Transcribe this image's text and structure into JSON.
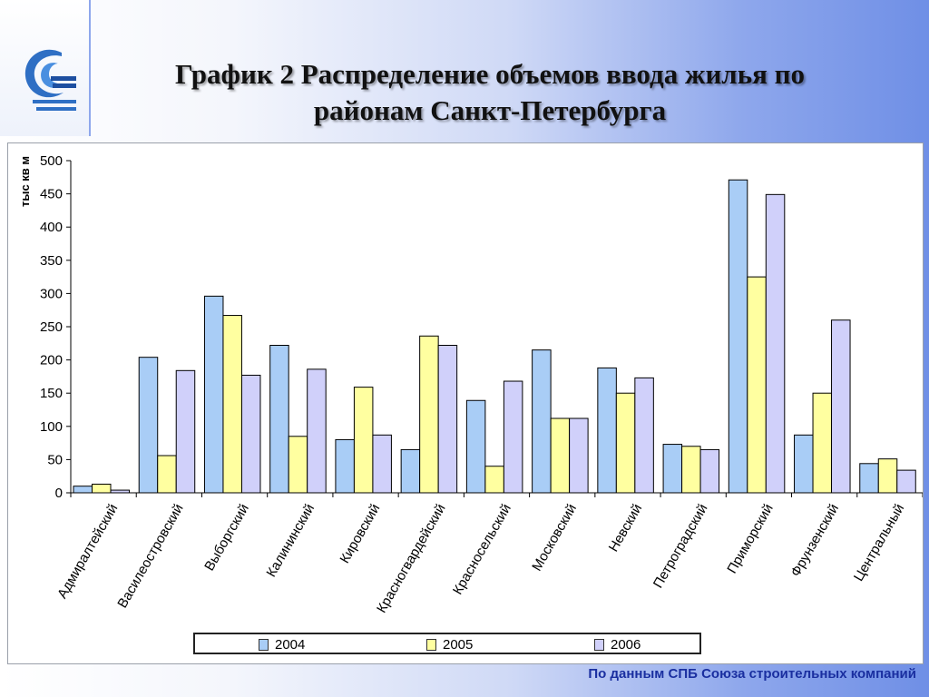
{
  "title": "График 2 Распределение объемов ввода жилья по районам Санкт-Петербурга",
  "source_note": "По данным СПБ Союза строительных компаний",
  "colors": {
    "s2004": "#a9cdf6",
    "s2005": "#ffffa0",
    "s2006": "#d0d0fa"
  },
  "chart_data": {
    "type": "bar",
    "title": "",
    "xlabel": "",
    "ylabel": "тыс кв м",
    "ylim": [
      0,
      500
    ],
    "yticks": [
      0,
      50,
      100,
      150,
      200,
      250,
      300,
      350,
      400,
      450,
      500
    ],
    "grid": false,
    "legend_position": "bottom",
    "categories": [
      "Адмиралтейский",
      "Василеостровский",
      "Выборгский",
      "Калининский",
      "Кировский",
      "Красногвардейский",
      "Красносельский",
      "Московский",
      "Невский",
      "Петроградский",
      "Приморский",
      "Фрунзенский",
      "Центральный"
    ],
    "series": [
      {
        "name": "2004",
        "color": "#a9cdf6",
        "values": [
          10,
          204,
          296,
          222,
          80,
          65,
          139,
          215,
          188,
          73,
          471,
          87,
          44
        ]
      },
      {
        "name": "2005",
        "color": "#ffffa0",
        "values": [
          13,
          56,
          267,
          85,
          159,
          236,
          40,
          112,
          150,
          70,
          325,
          150,
          51
        ]
      },
      {
        "name": "2006",
        "color": "#d0d0fa",
        "values": [
          4,
          184,
          177,
          186,
          87,
          222,
          168,
          112,
          173,
          65,
          449,
          260,
          34
        ]
      }
    ]
  }
}
